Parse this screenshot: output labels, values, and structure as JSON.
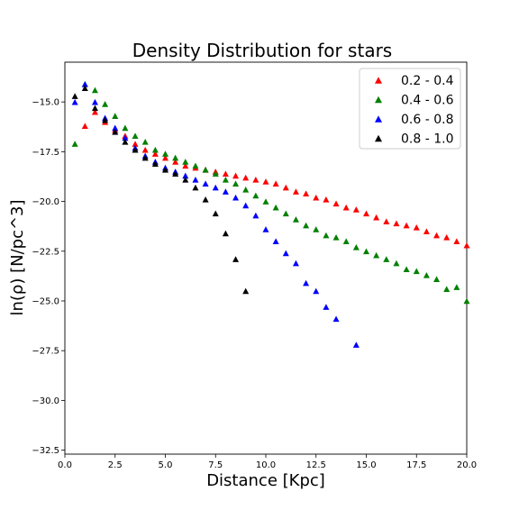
{
  "chart_data": {
    "type": "scatter",
    "title": "Density Distribution for stars",
    "xlabel": "Distance [Kpc]",
    "ylabel": "ln(ρ)   [N/pc^3]",
    "xlim": [
      0,
      20
    ],
    "ylim": [
      -32.7,
      -13.0
    ],
    "xticks": [
      0.0,
      2.5,
      5.0,
      7.5,
      10.0,
      12.5,
      15.0,
      17.5,
      20.0
    ],
    "xtick_labels": [
      "0.0",
      "2.5",
      "5.0",
      "7.5",
      "10.0",
      "12.5",
      "15.0",
      "17.5",
      "20.0"
    ],
    "yticks": [
      -15.0,
      -17.5,
      -20.0,
      -22.5,
      -25.0,
      -27.5,
      -30.0,
      -32.5
    ],
    "ytick_labels": [
      "−15.0",
      "−17.5",
      "−20.0",
      "−22.5",
      "−25.0",
      "−27.5",
      "−30.0",
      "−32.5"
    ],
    "grid": false,
    "legend": "top-right",
    "marker": "triangle",
    "series": [
      {
        "name": "0.2 - 0.4",
        "color": "#ff0000",
        "x": [
          1.0,
          1.5,
          2.0,
          2.5,
          3.0,
          3.5,
          4.0,
          4.5,
          5.0,
          5.5,
          6.0,
          6.5,
          7.0,
          7.5,
          8.0,
          8.5,
          9.0,
          9.5,
          10.0,
          10.5,
          11.0,
          11.5,
          12.0,
          12.5,
          13.0,
          13.5,
          14.0,
          14.5,
          15.0,
          15.5,
          16.0,
          16.5,
          17.0,
          17.5,
          18.0,
          18.5,
          19.0,
          19.5,
          20.0
        ],
        "y": [
          -16.2,
          -15.5,
          -16.0,
          -16.4,
          -16.7,
          -17.1,
          -17.4,
          -17.6,
          -17.8,
          -18.0,
          -18.2,
          -18.3,
          -18.4,
          -18.5,
          -18.6,
          -18.7,
          -18.8,
          -18.9,
          -19.0,
          -19.1,
          -19.3,
          -19.5,
          -19.6,
          -19.8,
          -19.9,
          -20.1,
          -20.3,
          -20.4,
          -20.6,
          -20.8,
          -21.0,
          -21.1,
          -21.2,
          -21.3,
          -21.5,
          -21.7,
          -21.8,
          -22.0,
          -22.2
        ]
      },
      {
        "name": "0.4 - 0.6",
        "color": "#008000",
        "x": [
          0.5,
          1.0,
          1.5,
          2.0,
          2.5,
          3.0,
          3.5,
          4.0,
          4.5,
          5.0,
          5.5,
          6.0,
          6.5,
          7.0,
          7.5,
          8.0,
          8.5,
          9.0,
          9.5,
          10.0,
          10.5,
          11.0,
          11.5,
          12.0,
          12.5,
          13.0,
          13.5,
          14.0,
          14.5,
          15.0,
          15.5,
          16.0,
          16.5,
          17.0,
          17.5,
          18.0,
          18.5,
          19.0,
          19.5,
          20.0
        ],
        "y": [
          -17.1,
          -14.1,
          -14.4,
          -15.1,
          -15.7,
          -16.3,
          -16.7,
          -17.0,
          -17.4,
          -17.6,
          -17.8,
          -18.0,
          -18.2,
          -18.4,
          -18.6,
          -18.9,
          -19.1,
          -19.4,
          -19.7,
          -20.0,
          -20.3,
          -20.6,
          -20.9,
          -21.2,
          -21.4,
          -21.7,
          -21.8,
          -22.0,
          -22.3,
          -22.5,
          -22.7,
          -22.9,
          -23.1,
          -23.4,
          -23.5,
          -23.7,
          -23.9,
          -24.4,
          -24.3,
          -25.0
        ]
      },
      {
        "name": "0.6 - 0.8",
        "color": "#0000ff",
        "x": [
          0.5,
          1.0,
          1.5,
          2.0,
          2.5,
          3.0,
          3.5,
          4.0,
          4.5,
          5.0,
          5.5,
          6.0,
          6.5,
          7.0,
          7.5,
          8.0,
          8.5,
          9.0,
          9.5,
          10.0,
          10.5,
          11.0,
          11.5,
          12.0,
          12.5,
          13.0,
          13.5,
          14.5
        ],
        "y": [
          -15.0,
          -14.1,
          -15.0,
          -15.8,
          -16.3,
          -16.8,
          -17.3,
          -17.7,
          -18.0,
          -18.3,
          -18.5,
          -18.7,
          -18.9,
          -19.1,
          -19.3,
          -19.5,
          -19.8,
          -20.2,
          -20.7,
          -21.4,
          -22.0,
          -22.6,
          -23.1,
          -24.1,
          -24.5,
          -25.3,
          -25.9,
          -27.2
        ]
      },
      {
        "name": "0.8 - 1.0",
        "color": "#000000",
        "x": [
          0.5,
          1.0,
          1.5,
          2.0,
          2.5,
          3.0,
          3.5,
          4.0,
          4.5,
          5.0,
          5.5,
          6.0,
          6.5,
          7.0,
          7.5,
          8.0,
          8.5,
          9.0
        ],
        "y": [
          -14.7,
          -14.3,
          -15.3,
          -15.9,
          -16.5,
          -17.0,
          -17.4,
          -17.8,
          -18.1,
          -18.4,
          -18.6,
          -18.9,
          -19.3,
          -19.9,
          -20.6,
          -21.6,
          -22.9,
          -24.5
        ]
      }
    ]
  }
}
